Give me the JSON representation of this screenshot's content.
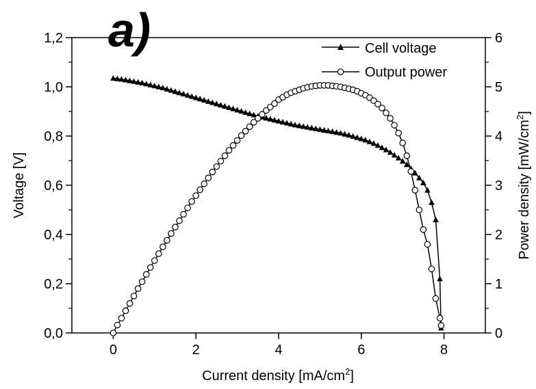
{
  "chart_data": {
    "type": "line",
    "panel_label": "a)",
    "xlabel": "Current density [mA/cm",
    "xlabel_sup": "2",
    "xlabel_end": "]",
    "ylabel_left": "Voltage [V]",
    "ylabel_right": "Power density [mW/cm",
    "ylabel_right_sup": "2",
    "ylabel_right_end": "]",
    "xlim": [
      -1,
      9
    ],
    "ylim_left": [
      0,
      1.2
    ],
    "ylim_right": [
      0,
      6
    ],
    "x_ticks": [
      0,
      2,
      4,
      6,
      8
    ],
    "x_tick_labels": [
      "0",
      "2",
      "4",
      "6",
      "8"
    ],
    "y_left_ticks": [
      0,
      0.2,
      0.4,
      0.6,
      0.8,
      1.0,
      1.2
    ],
    "y_left_tick_labels": [
      "0,0",
      "0,2",
      "0,4",
      "0,6",
      "0,8",
      "1,0",
      "1,2"
    ],
    "y_right_ticks": [
      0,
      1,
      2,
      3,
      4,
      5,
      6
    ],
    "y_right_tick_labels": [
      "0",
      "1",
      "2",
      "3",
      "4",
      "5",
      "6"
    ],
    "grid": false,
    "legend_position": "top-right",
    "series": [
      {
        "name": "Cell voltage",
        "axis": "left",
        "marker": "filled-triangle",
        "color": "#000000",
        "x": [
          0.0,
          0.1,
          0.2,
          0.3,
          0.4,
          0.5,
          0.6,
          0.7,
          0.8,
          0.9,
          1.0,
          1.1,
          1.2,
          1.3,
          1.4,
          1.5,
          1.6,
          1.7,
          1.8,
          1.9,
          2.0,
          2.1,
          2.2,
          2.3,
          2.4,
          2.5,
          2.6,
          2.7,
          2.8,
          2.9,
          3.0,
          3.1,
          3.2,
          3.3,
          3.4,
          3.5,
          3.6,
          3.7,
          3.8,
          3.9,
          4.0,
          4.1,
          4.2,
          4.3,
          4.4,
          4.5,
          4.6,
          4.7,
          4.8,
          4.9,
          5.0,
          5.1,
          5.2,
          5.3,
          5.4,
          5.5,
          5.6,
          5.7,
          5.8,
          5.9,
          6.0,
          6.1,
          6.2,
          6.3,
          6.4,
          6.5,
          6.6,
          6.7,
          6.8,
          6.9,
          7.0,
          7.1,
          7.2,
          7.3,
          7.4,
          7.5,
          7.6,
          7.7,
          7.8,
          7.9,
          7.93
        ],
        "y": [
          1.035,
          1.033,
          1.031,
          1.028,
          1.025,
          1.022,
          1.019,
          1.016,
          1.012,
          1.008,
          1.004,
          1.0,
          0.996,
          0.991,
          0.986,
          0.981,
          0.976,
          0.971,
          0.966,
          0.961,
          0.956,
          0.951,
          0.946,
          0.941,
          0.936,
          0.931,
          0.926,
          0.921,
          0.916,
          0.911,
          0.906,
          0.901,
          0.896,
          0.891,
          0.886,
          0.881,
          0.877,
          0.873,
          0.869,
          0.865,
          0.861,
          0.857,
          0.853,
          0.849,
          0.845,
          0.842,
          0.839,
          0.836,
          0.833,
          0.83,
          0.827,
          0.824,
          0.821,
          0.818,
          0.815,
          0.812,
          0.808,
          0.804,
          0.799,
          0.794,
          0.789,
          0.784,
          0.777,
          0.77,
          0.762,
          0.753,
          0.744,
          0.734,
          0.723,
          0.711,
          0.698,
          0.684,
          0.668,
          0.65,
          0.63,
          0.61,
          0.58,
          0.53,
          0.46,
          0.22,
          0.02
        ]
      },
      {
        "name": "Output power",
        "axis": "right",
        "marker": "open-circle",
        "color": "#000000",
        "x": [
          0.0,
          0.1,
          0.2,
          0.3,
          0.4,
          0.5,
          0.6,
          0.7,
          0.8,
          0.9,
          1.0,
          1.1,
          1.2,
          1.3,
          1.4,
          1.5,
          1.6,
          1.7,
          1.8,
          1.9,
          2.0,
          2.1,
          2.2,
          2.3,
          2.4,
          2.5,
          2.6,
          2.7,
          2.8,
          2.9,
          3.0,
          3.1,
          3.2,
          3.3,
          3.4,
          3.5,
          3.6,
          3.7,
          3.8,
          3.9,
          4.0,
          4.1,
          4.2,
          4.3,
          4.4,
          4.5,
          4.6,
          4.7,
          4.8,
          4.9,
          5.0,
          5.1,
          5.2,
          5.3,
          5.4,
          5.5,
          5.6,
          5.7,
          5.8,
          5.9,
          6.0,
          6.1,
          6.2,
          6.3,
          6.4,
          6.5,
          6.6,
          6.7,
          6.8,
          6.9,
          7.0,
          7.1,
          7.2,
          7.3,
          7.4,
          7.5,
          7.6,
          7.7,
          7.8,
          7.9,
          7.93
        ],
        "y": [
          0.0,
          0.16,
          0.3,
          0.45,
          0.6,
          0.75,
          0.9,
          1.04,
          1.19,
          1.33,
          1.47,
          1.61,
          1.75,
          1.88,
          2.02,
          2.15,
          2.28,
          2.41,
          2.54,
          2.67,
          2.79,
          2.91,
          3.03,
          3.15,
          3.27,
          3.38,
          3.49,
          3.6,
          3.71,
          3.81,
          3.91,
          4.01,
          4.1,
          4.19,
          4.28,
          4.36,
          4.44,
          4.52,
          4.59,
          4.66,
          4.74,
          4.79,
          4.84,
          4.88,
          4.91,
          4.94,
          4.97,
          4.99,
          5.01,
          5.02,
          5.03,
          5.03,
          5.03,
          5.02,
          5.01,
          5.0,
          4.98,
          4.96,
          4.94,
          4.91,
          4.87,
          4.83,
          4.78,
          4.72,
          4.65,
          4.57,
          4.47,
          4.36,
          4.22,
          4.06,
          3.86,
          3.6,
          3.28,
          2.9,
          2.5,
          2.1,
          1.8,
          1.3,
          0.7,
          0.3,
          0.15
        ]
      }
    ]
  }
}
